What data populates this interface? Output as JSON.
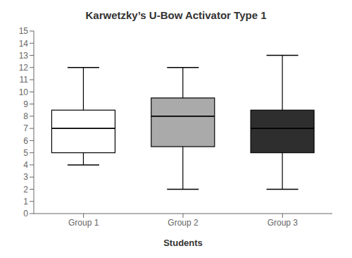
{
  "chart_data": {
    "type": "box",
    "title": "Karwetzky’s U-Bow Activator Type 1",
    "xlabel": "Students",
    "categories": [
      "Group 1",
      "Group 2",
      "Group 3"
    ],
    "min": [
      4.0,
      2.0,
      2.0
    ],
    "q1": [
      5.0,
      5.5,
      5.0
    ],
    "median": [
      7.0,
      8.0,
      7.0
    ],
    "q3": [
      8.5,
      9.5,
      8.5
    ],
    "max": [
      12.0,
      12.0,
      13.0
    ],
    "colors": [
      "#ffffff",
      "#aaaaaa",
      "#2e2e2e"
    ],
    "ylim": [
      0,
      15
    ],
    "yticks": [
      0,
      1,
      2,
      3,
      4,
      5,
      6,
      7,
      8,
      9,
      10,
      11,
      12,
      13,
      14,
      15
    ],
    "grid": false
  }
}
